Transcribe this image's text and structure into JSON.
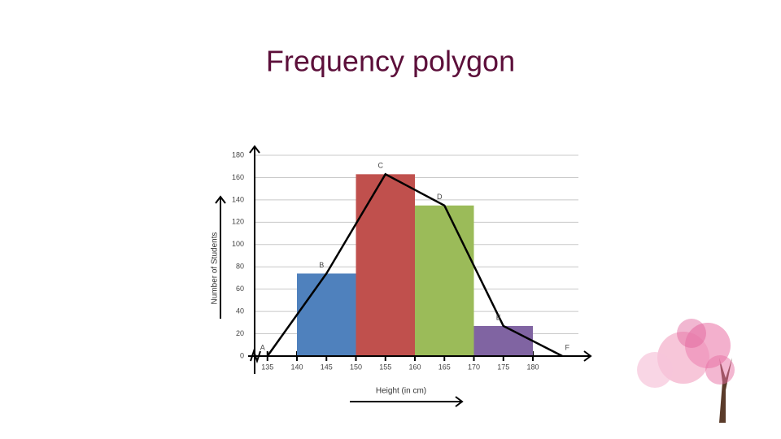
{
  "chart_data": {
    "type": "histogram",
    "title": "Frequency polygon",
    "x_label": "Height (in cm)",
    "y_label": "Number of Students",
    "bins": [
      140,
      150,
      160,
      170,
      180
    ],
    "values": [
      74,
      163,
      135,
      27
    ],
    "colors": [
      "#4f81bd",
      "#c0504d",
      "#9bbb59",
      "#8064a2"
    ],
    "polygon": {
      "x": [
        135,
        145,
        155,
        165,
        175,
        185
      ],
      "values": [
        0,
        74,
        163,
        135,
        27,
        0
      ],
      "labels": [
        "A",
        "B",
        "C",
        "D",
        "E",
        "F"
      ],
      "color": "#000000"
    },
    "xlim": [
      132,
      188
    ],
    "xticks": [
      135,
      140,
      145,
      150,
      155,
      160,
      165,
      170,
      175,
      180
    ],
    "ylim": [
      0,
      180
    ],
    "yticks": [
      0,
      20,
      40,
      60,
      80,
      100,
      120,
      140,
      160,
      180
    ],
    "grid": true
  }
}
